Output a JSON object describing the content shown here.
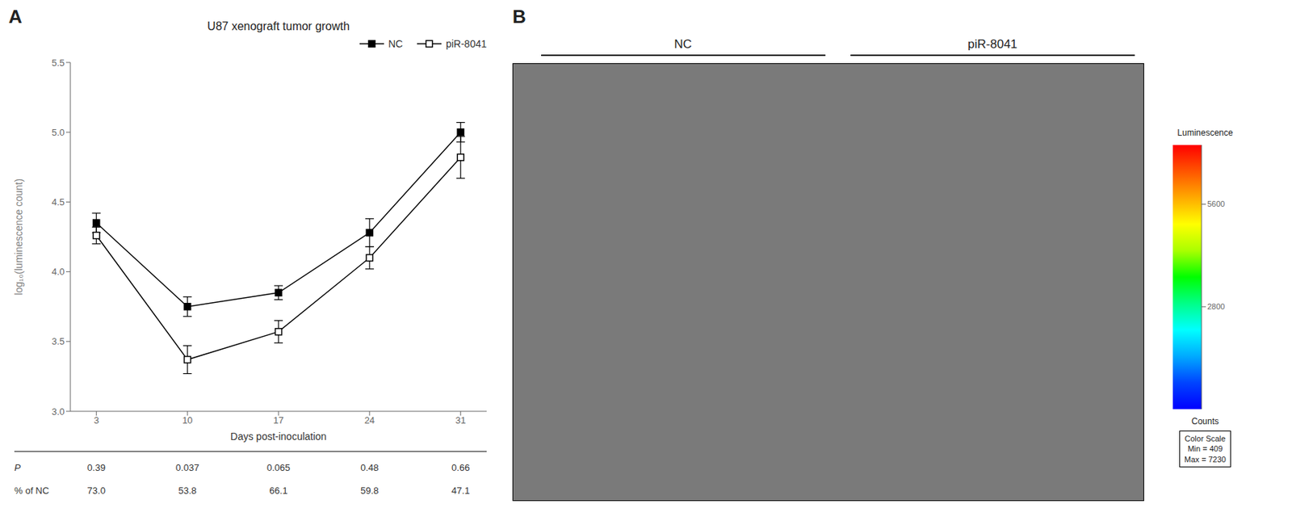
{
  "chart_data": [
    {
      "type": "line",
      "title": "U87 xenograft tumor growth",
      "xlabel": "Days post-inoculation",
      "ylabel": "log₁₀(luminescence count)",
      "x": [
        3,
        10,
        17,
        24,
        31
      ],
      "xlim": [
        1.0,
        33.0
      ],
      "xticks": [
        3,
        10,
        17,
        24,
        31
      ],
      "ylim": [
        3.0,
        5.5
      ],
      "yticks": [
        {
          "value": 3.0,
          "label": "3.0"
        },
        3.5,
        {
          "value": 4.0,
          "label": "4.0"
        },
        4.5,
        {
          "value": 5.0,
          "label": "5.0"
        },
        5.5
      ],
      "series": [
        {
          "name": "NC",
          "color": "#000000",
          "marker": "square",
          "line_style": "solid",
          "values": [
            4.35,
            3.75,
            3.85,
            4.28,
            5.0
          ],
          "errors": [
            0.07,
            0.07,
            0.05,
            0.1,
            0.07
          ]
        },
        {
          "name": "piR-8041",
          "color": "#000000",
          "marker": "open_square",
          "line_style": "solid",
          "values": [
            4.26,
            3.37,
            3.57,
            4.1,
            4.82
          ],
          "errors": [
            0.06,
            0.1,
            0.08,
            0.08,
            0.15
          ]
        }
      ],
      "table": [
        {
          "name": "P",
          "values": [
            "0.39",
            "0.037",
            "0.065",
            "0.48",
            "0.66"
          ]
        },
        {
          "name": "% of NC",
          "values": [
            "73.0",
            "53.8",
            "66.1",
            "59.8",
            "47.1"
          ]
        }
      ],
      "annotations": [
        "A"
      ],
      "legend": "upper right",
      "grid": false
    },
    {
      "type": "image",
      "color": "#7a7a7a",
      "categories": [
        "NC",
        "piR-8041"
      ],
      "annotations": [
        "B",
        "Color Scale",
        "Min = 409",
        "Max = 7230"
      ],
      "colorbar": {
        "title": "Luminescence",
        "label": "Counts",
        "range": [
          0,
          7220
        ],
        "ticks": [
          2800,
          5600
        ],
        "colors": [
          "#0000ff",
          "#0044ff",
          "#00aaff",
          "#00ffff",
          "#00ff88",
          "#00ff00",
          "#aaff00",
          "#ffff00",
          "#ffaa00",
          "#ff5500",
          "#ff0000"
        ]
      }
    }
  ]
}
